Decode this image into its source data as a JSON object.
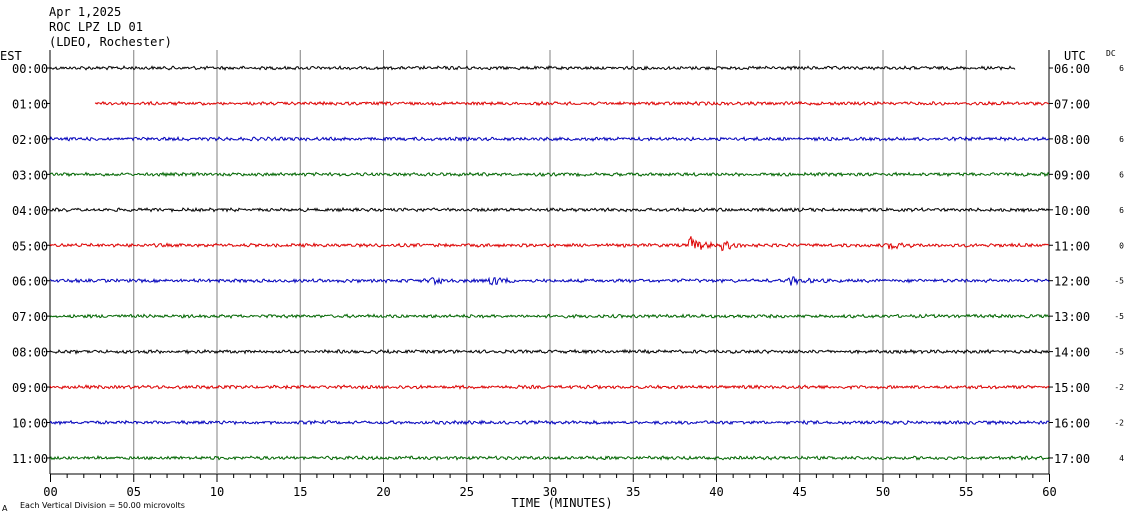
{
  "header": {
    "date": "Apr 1,2025",
    "station": "ROC LPZ LD 01",
    "network": "(LDEO, Rochester)"
  },
  "labels": {
    "left_zone": "EST",
    "right_zone": "UTC",
    "dc_header": "DC",
    "time_axis": "TIME (MINUTES)",
    "scale_note": "Each Vertical Division =   50.00 microvolts",
    "corner_mark": "A"
  },
  "chart_data": {
    "type": "line",
    "title": "ROC LPZ LD 01",
    "xlabel": "TIME (MINUTES)",
    "xlim": [
      0,
      60
    ],
    "x_ticks": [
      "00",
      "05",
      "10",
      "15",
      "20",
      "25",
      "30",
      "35",
      "40",
      "45",
      "50",
      "55",
      "60"
    ],
    "grid": true,
    "rows": [
      {
        "est": "00:00",
        "utc": "06:00",
        "dc": "6",
        "color": "#000000",
        "start": 0,
        "end": 58,
        "events": []
      },
      {
        "est": "01:00",
        "utc": "07:00",
        "dc": "",
        "color": "#dd0000",
        "start": 2.7,
        "end": 60,
        "events": []
      },
      {
        "est": "02:00",
        "utc": "08:00",
        "dc": "6",
        "color": "#0000bb",
        "start": 0,
        "end": 60,
        "events": []
      },
      {
        "est": "03:00",
        "utc": "09:00",
        "dc": "6",
        "color": "#006600",
        "start": 0,
        "end": 60,
        "events": []
      },
      {
        "est": "04:00",
        "utc": "10:00",
        "dc": "6",
        "color": "#000000",
        "start": 0,
        "end": 60,
        "events": []
      },
      {
        "est": "05:00",
        "utc": "11:00",
        "dc": "0",
        "color": "#dd0000",
        "start": 0,
        "end": 60,
        "events": [
          {
            "t": 38.5,
            "amp": 6
          },
          {
            "t": 40.5,
            "amp": 3
          },
          {
            "t": 50.5,
            "amp": 3
          }
        ]
      },
      {
        "est": "06:00",
        "utc": "12:00",
        "dc": "-5",
        "color": "#0000bb",
        "start": 0,
        "end": 60,
        "events": [
          {
            "t": 23,
            "amp": 4
          },
          {
            "t": 26.5,
            "amp": 4
          },
          {
            "t": 44.5,
            "amp": 3
          }
        ]
      },
      {
        "est": "07:00",
        "utc": "13:00",
        "dc": "-5",
        "color": "#006600",
        "start": 0,
        "end": 60,
        "events": []
      },
      {
        "est": "08:00",
        "utc": "14:00",
        "dc": "-5",
        "color": "#000000",
        "start": 0,
        "end": 60,
        "events": []
      },
      {
        "est": "09:00",
        "utc": "15:00",
        "dc": "-2",
        "color": "#dd0000",
        "start": 0,
        "end": 60,
        "events": []
      },
      {
        "est": "10:00",
        "utc": "16:00",
        "dc": "-2",
        "color": "#0000bb",
        "start": 0,
        "end": 60,
        "events": []
      },
      {
        "est": "11:00",
        "utc": "17:00",
        "dc": "4",
        "color": "#006600",
        "start": 0,
        "end": 60,
        "events": []
      }
    ]
  }
}
